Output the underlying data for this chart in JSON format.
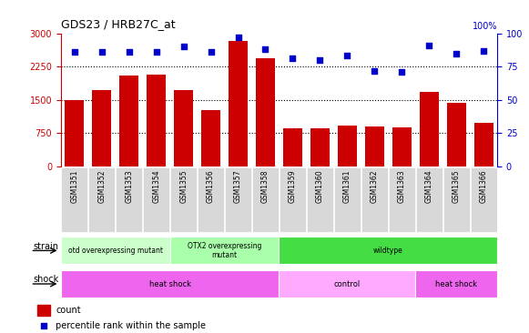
{
  "title": "GDS23 / HRB27C_at",
  "samples": [
    "GSM1351",
    "GSM1352",
    "GSM1353",
    "GSM1354",
    "GSM1355",
    "GSM1356",
    "GSM1357",
    "GSM1358",
    "GSM1359",
    "GSM1360",
    "GSM1361",
    "GSM1362",
    "GSM1363",
    "GSM1364",
    "GSM1365",
    "GSM1366"
  ],
  "counts": [
    1490,
    1720,
    2050,
    2060,
    1720,
    1270,
    2820,
    2430,
    870,
    860,
    920,
    900,
    880,
    1680,
    1430,
    980
  ],
  "percentiles": [
    86,
    86,
    86,
    86,
    90,
    86,
    97,
    88,
    81,
    80,
    83,
    72,
    71,
    91,
    85,
    87
  ],
  "bar_color": "#cc0000",
  "dot_color": "#0000cc",
  "ylim_left": [
    0,
    3000
  ],
  "ylim_right": [
    0,
    100
  ],
  "yticks_left": [
    0,
    750,
    1500,
    2250,
    3000
  ],
  "yticks_right": [
    0,
    25,
    50,
    75,
    100
  ],
  "grid_lines": [
    750,
    1500,
    2250
  ],
  "strain_labels": [
    {
      "text": "otd overexpressing mutant",
      "start": 0,
      "end": 3,
      "color": "#ccffcc"
    },
    {
      "text": "OTX2 overexpressing\nmutant",
      "start": 4,
      "end": 7,
      "color": "#aaffaa"
    },
    {
      "text": "wildtype",
      "start": 8,
      "end": 15,
      "color": "#44dd44"
    }
  ],
  "shock_labels": [
    {
      "text": "heat shock",
      "start": 0,
      "end": 7,
      "color": "#ee66ee"
    },
    {
      "text": "control",
      "start": 8,
      "end": 12,
      "color": "#ffaaff"
    },
    {
      "text": "heat shock",
      "start": 13,
      "end": 15,
      "color": "#ee66ee"
    }
  ],
  "legend_bar_color": "#cc0000",
  "legend_dot_color": "#0000cc",
  "legend_count_label": "count",
  "legend_percentile_label": "percentile rank within the sample",
  "bg_color": "#ffffff",
  "plot_bg_color": "#ffffff",
  "tick_bg_color": "#d8d8d8",
  "bar_width": 0.7
}
